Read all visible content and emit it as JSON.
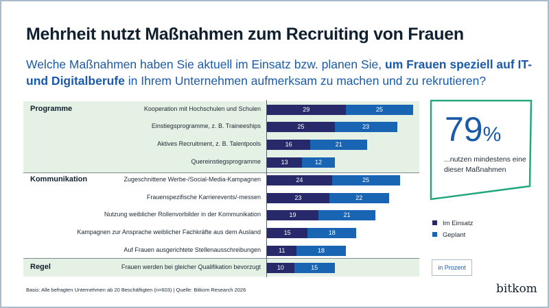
{
  "title": "Mehrheit nutzt Maßnahmen zum Recruiting von Frauen",
  "subtitle": {
    "part1": "Welche Maßnahmen haben Sie aktuell im Einsatz bzw. planen Sie, ",
    "bold": "um Frauen speziell auf IT- und Digitalberufe",
    "part2": " in Ihrem Unternehmen aufmerksam zu machen und zu rekrutieren?"
  },
  "colors": {
    "im_einsatz": "#27296b",
    "geplant": "#1a64b4",
    "accent": "#22a77f",
    "band": "#e5f1e4"
  },
  "callout": {
    "value": "79",
    "unit": "%",
    "text": "...nutzen mindestens eine dieser Maßnahmen"
  },
  "unit_label": "in Prozent",
  "footnote": "Basis: Alle befragten Unternehmen ab 20 Beschäftigten (n=603) | Quelle: Bitkom Research 2026",
  "logo": "bitkom",
  "chart_data": {
    "type": "bar",
    "stacked": true,
    "orientation": "horizontal",
    "groups": [
      {
        "name": "Programme",
        "start": 0
      },
      {
        "name": "Kommunikation",
        "start": 4
      },
      {
        "name": "Regel",
        "start": 9
      }
    ],
    "categories": [
      "Kooperation mit Hochschulen und Schulen",
      "Einstiegsprogramme, z. B. Traineeships",
      "Aktives Recruitment, z. B. Talentpools",
      "Quereinstiegsprogramme",
      "Zugeschnittene Werbe-/Social-Media-Kampagnen",
      "Frauenspezifische Karrierevents/-messen",
      "Nutzung weiblicher Rollenvorbilder in der Kommunikation",
      "Kampagnen zur Ansprache weiblicher Fachkräfte aus dem Ausland",
      "Auf Frauen ausgerichtete Stellenausschreibungen",
      "Frauen werden bei gleicher Qualifikation bevorzugt"
    ],
    "series": [
      {
        "name": "Im Einsatz",
        "values": [
          29,
          25,
          16,
          13,
          24,
          23,
          19,
          15,
          11,
          10
        ]
      },
      {
        "name": "Geplant",
        "values": [
          25,
          23,
          21,
          12,
          25,
          22,
          21,
          18,
          18,
          15
        ]
      }
    ],
    "legend": "right"
  }
}
